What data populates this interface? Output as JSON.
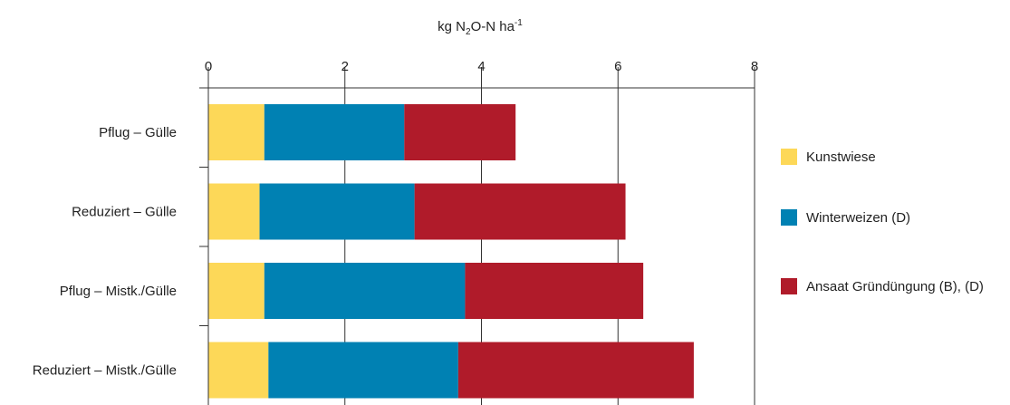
{
  "chart_data": {
    "type": "bar",
    "orientation": "horizontal",
    "stacked": true,
    "title": "",
    "xlabel": {
      "base": "kg N",
      "sub": "2",
      "mid": "O-N ha",
      "sup": "-1"
    },
    "ylabel": "",
    "xlim": [
      0,
      8
    ],
    "xticks": [
      "0",
      "2",
      "4",
      "6",
      "8"
    ],
    "xtick_values": [
      0,
      2,
      4,
      6,
      8
    ],
    "grid": true,
    "legend_position": "right",
    "categories": [
      "Pflug – Gülle",
      "Reduziert – Gülle",
      "Pflug – Mistk./Gülle",
      "Reduziert – Mistk./Gülle"
    ],
    "series": [
      {
        "name": "Kunstwiese",
        "color": "#FDD858",
        "values": [
          0.82,
          0.75,
          0.82,
          0.88
        ]
      },
      {
        "name": "Winterweizen (D)",
        "color": "#0081B3",
        "values": [
          2.05,
          2.27,
          2.94,
          2.78
        ]
      },
      {
        "name": "Ansaat Gründüngung (B), (D)",
        "color": "#B01B2A",
        "values": [
          1.63,
          3.09,
          2.61,
          3.45
        ]
      }
    ]
  }
}
